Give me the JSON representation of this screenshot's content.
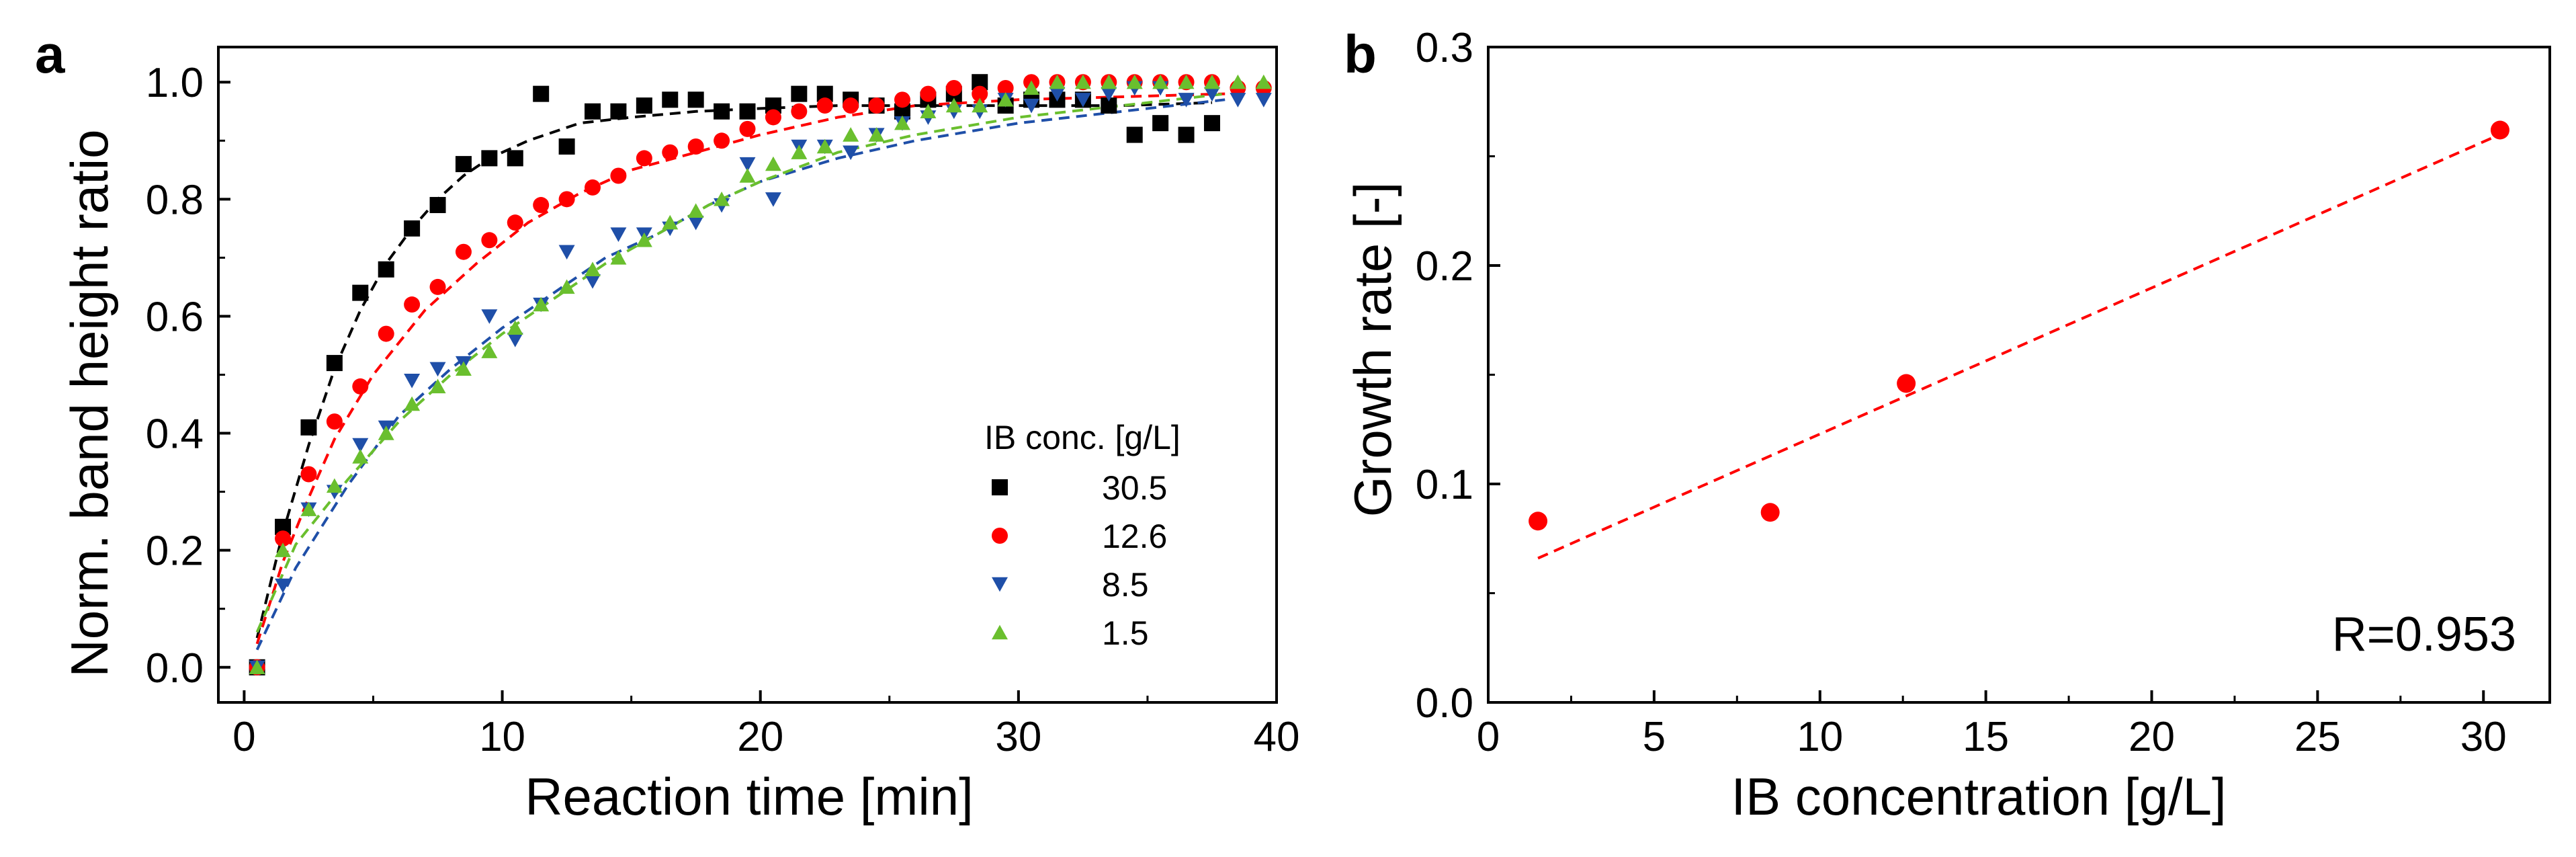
{
  "panels": [
    {
      "letter": "a",
      "xlabel": "Reaction time [min]",
      "ylabel": "Norm. band height ratio",
      "legend_title": "IB conc. [g/L]"
    },
    {
      "letter": "b",
      "xlabel": "IB concentration [g/L]",
      "ylabel": "Growth rate [-]",
      "annotation": "R=0.953"
    }
  ],
  "chart_data": [
    {
      "type": "scatter",
      "panel": "a",
      "xlabel": "Reaction time [min]",
      "ylabel": "Norm. band height ratio",
      "xlim": [
        -1,
        40
      ],
      "ylim": [
        -0.06,
        1.06
      ],
      "xticks": [
        0,
        10,
        20,
        30,
        40
      ],
      "yticks": [
        0.0,
        0.2,
        0.4,
        0.6,
        0.8,
        1.0
      ],
      "xtick_labels": [
        "0",
        "10",
        "20",
        "30",
        "40"
      ],
      "ytick_labels": [
        "0.0",
        "0.2",
        "0.4",
        "0.6",
        "0.8",
        "1.0"
      ],
      "legend_title": "IB conc. [g/L]",
      "legend_position": "lower-right",
      "series": [
        {
          "name": "30.5",
          "color": "#000000",
          "marker": "square",
          "x": [
            0.5,
            1.5,
            2.5,
            3.5,
            4.5,
            5.5,
            6.5,
            7.5,
            8.5,
            9.5,
            10.5,
            11.5,
            12.5,
            13.5,
            14.5,
            15.5,
            16.5,
            17.5,
            18.5,
            19.5,
            20.5,
            21.5,
            22.5,
            23.5,
            24.5,
            25.5,
            26.5,
            27.5,
            28.5,
            29.5,
            30.5,
            31.5,
            32.5,
            33.5,
            34.5,
            35.5,
            36.5,
            37.5
          ],
          "y": [
            0.0,
            0.24,
            0.41,
            0.52,
            0.64,
            0.68,
            0.75,
            0.79,
            0.86,
            0.87,
            0.87,
            0.98,
            0.89,
            0.95,
            0.95,
            0.96,
            0.97,
            0.97,
            0.95,
            0.95,
            0.96,
            0.98,
            0.98,
            0.97,
            0.96,
            0.95,
            0.97,
            0.98,
            1.0,
            0.96,
            0.97,
            0.97,
            0.97,
            0.96,
            0.91,
            0.93,
            0.91,
            0.93
          ],
          "fit_x": [
            0.5,
            1.5,
            2.5,
            3.5,
            4.5,
            5.5,
            6.5,
            7.5,
            8.5,
            9.5,
            11,
            13,
            15,
            17.5,
            20,
            23,
            26,
            30,
            34,
            37.5
          ],
          "fit_y": [
            0.05,
            0.23,
            0.38,
            0.51,
            0.61,
            0.69,
            0.75,
            0.8,
            0.84,
            0.87,
            0.9,
            0.93,
            0.94,
            0.95,
            0.955,
            0.96,
            0.96,
            0.96,
            0.96,
            0.965
          ]
        },
        {
          "name": "12.6",
          "color": "#ff0000",
          "marker": "circle",
          "x": [
            0.5,
            1.5,
            2.5,
            3.5,
            4.5,
            5.5,
            6.5,
            7.5,
            8.5,
            9.5,
            10.5,
            11.5,
            12.5,
            13.5,
            14.5,
            15.5,
            16.5,
            17.5,
            18.5,
            19.5,
            20.5,
            21.5,
            22.5,
            23.5,
            24.5,
            25.5,
            26.5,
            27.5,
            28.5,
            29.5,
            30.5,
            31.5,
            32.5,
            33.5,
            34.5,
            35.5,
            36.5,
            37.5,
            38.5,
            39.5
          ],
          "y": [
            0.0,
            0.22,
            0.33,
            0.42,
            0.48,
            0.57,
            0.62,
            0.65,
            0.71,
            0.73,
            0.76,
            0.79,
            0.8,
            0.82,
            0.84,
            0.87,
            0.88,
            0.89,
            0.9,
            0.92,
            0.94,
            0.95,
            0.96,
            0.96,
            0.96,
            0.97,
            0.98,
            0.99,
            0.98,
            0.99,
            1.0,
            1.0,
            1.0,
            1.0,
            1.0,
            1.0,
            1.0,
            1.0,
            0.99,
            0.99
          ],
          "fit_x": [
            0.5,
            1.5,
            2.5,
            3.5,
            5,
            7,
            9,
            11,
            13,
            15,
            17.5,
            20,
            23,
            26,
            30,
            34,
            38
          ],
          "fit_y": [
            0.04,
            0.18,
            0.29,
            0.39,
            0.5,
            0.61,
            0.69,
            0.76,
            0.81,
            0.85,
            0.88,
            0.91,
            0.94,
            0.96,
            0.97,
            0.975,
            0.98
          ]
        },
        {
          "name": "8.5",
          "color": "#1f4fa8",
          "marker": "triangle-down",
          "x": [
            0.5,
            1.5,
            2.5,
            3.5,
            4.5,
            5.5,
            6.5,
            7.5,
            8.5,
            9.5,
            10.5,
            11.5,
            12.5,
            13.5,
            14.5,
            15.5,
            16.5,
            17.5,
            18.5,
            19.5,
            20.5,
            21.5,
            22.5,
            23.5,
            24.5,
            25.5,
            26.5,
            27.5,
            28.5,
            29.5,
            30.5,
            31.5,
            32.5,
            33.5,
            34.5,
            35.5,
            36.5,
            37.5,
            38.5,
            39.5
          ],
          "y": [
            0.0,
            0.14,
            0.27,
            0.3,
            0.38,
            0.41,
            0.49,
            0.51,
            0.52,
            0.6,
            0.56,
            0.62,
            0.71,
            0.66,
            0.74,
            0.74,
            0.75,
            0.76,
            0.79,
            0.86,
            0.8,
            0.89,
            0.89,
            0.88,
            0.91,
            0.93,
            0.94,
            0.95,
            0.95,
            0.97,
            0.96,
            0.98,
            0.97,
            0.98,
            0.99,
            0.99,
            0.97,
            0.98,
            0.97,
            0.97
          ],
          "fit_x": [
            0.5,
            2,
            4,
            6,
            8,
            10,
            12,
            14,
            16,
            18,
            20,
            23,
            26,
            30,
            34,
            38
          ],
          "fit_y": [
            0.03,
            0.17,
            0.31,
            0.43,
            0.51,
            0.58,
            0.64,
            0.7,
            0.74,
            0.79,
            0.83,
            0.87,
            0.9,
            0.93,
            0.95,
            0.97
          ]
        },
        {
          "name": "1.5",
          "color": "#6abf2e",
          "marker": "triangle-up",
          "x": [
            0.5,
            1.5,
            2.5,
            3.5,
            4.5,
            5.5,
            6.5,
            7.5,
            8.5,
            9.5,
            10.5,
            11.5,
            12.5,
            13.5,
            14.5,
            15.5,
            16.5,
            17.5,
            18.5,
            19.5,
            20.5,
            21.5,
            22.5,
            23.5,
            24.5,
            25.5,
            26.5,
            27.5,
            28.5,
            29.5,
            30.5,
            31.5,
            32.5,
            33.5,
            34.5,
            35.5,
            36.5,
            37.5,
            38.5,
            39.5
          ],
          "y": [
            0.0,
            0.2,
            0.27,
            0.31,
            0.36,
            0.4,
            0.45,
            0.48,
            0.51,
            0.54,
            0.58,
            0.62,
            0.65,
            0.68,
            0.7,
            0.73,
            0.76,
            0.78,
            0.8,
            0.84,
            0.86,
            0.88,
            0.89,
            0.91,
            0.91,
            0.93,
            0.95,
            0.96,
            0.96,
            0.97,
            0.99,
            1.0,
            1.0,
            1.0,
            1.0,
            1.0,
            1.0,
            1.0,
            1.0,
            1.0
          ],
          "fit_x": [
            0.5,
            2,
            4,
            6,
            8,
            10,
            12,
            14,
            16,
            18,
            20,
            23,
            26,
            30,
            34,
            38
          ],
          "fit_y": [
            0.06,
            0.21,
            0.32,
            0.42,
            0.5,
            0.57,
            0.63,
            0.69,
            0.74,
            0.79,
            0.83,
            0.88,
            0.91,
            0.94,
            0.96,
            0.98
          ]
        }
      ]
    },
    {
      "type": "scatter",
      "panel": "b",
      "xlabel": "IB concentration [g/L]",
      "ylabel": "Growth rate [-]",
      "xlim": [
        0,
        32
      ],
      "ylim": [
        0,
        0.3
      ],
      "xticks": [
        0,
        5,
        10,
        15,
        20,
        25,
        30
      ],
      "yticks": [
        0.0,
        0.1,
        0.2,
        0.3
      ],
      "xtick_labels": [
        "0",
        "5",
        "10",
        "15",
        "20",
        "25",
        "30"
      ],
      "ytick_labels": [
        "0.0",
        "0.1",
        "0.2",
        "0.3"
      ],
      "annotation": "R=0.953",
      "series": [
        {
          "color": "#ff0000",
          "marker": "circle",
          "x": [
            1.5,
            8.5,
            12.6,
            30.5
          ],
          "y": [
            0.083,
            0.087,
            0.146,
            0.262
          ]
        }
      ],
      "fit_line": {
        "x": [
          1.5,
          30.5
        ],
        "y": [
          0.066,
          0.26
        ],
        "color": "#ff0000"
      }
    }
  ]
}
